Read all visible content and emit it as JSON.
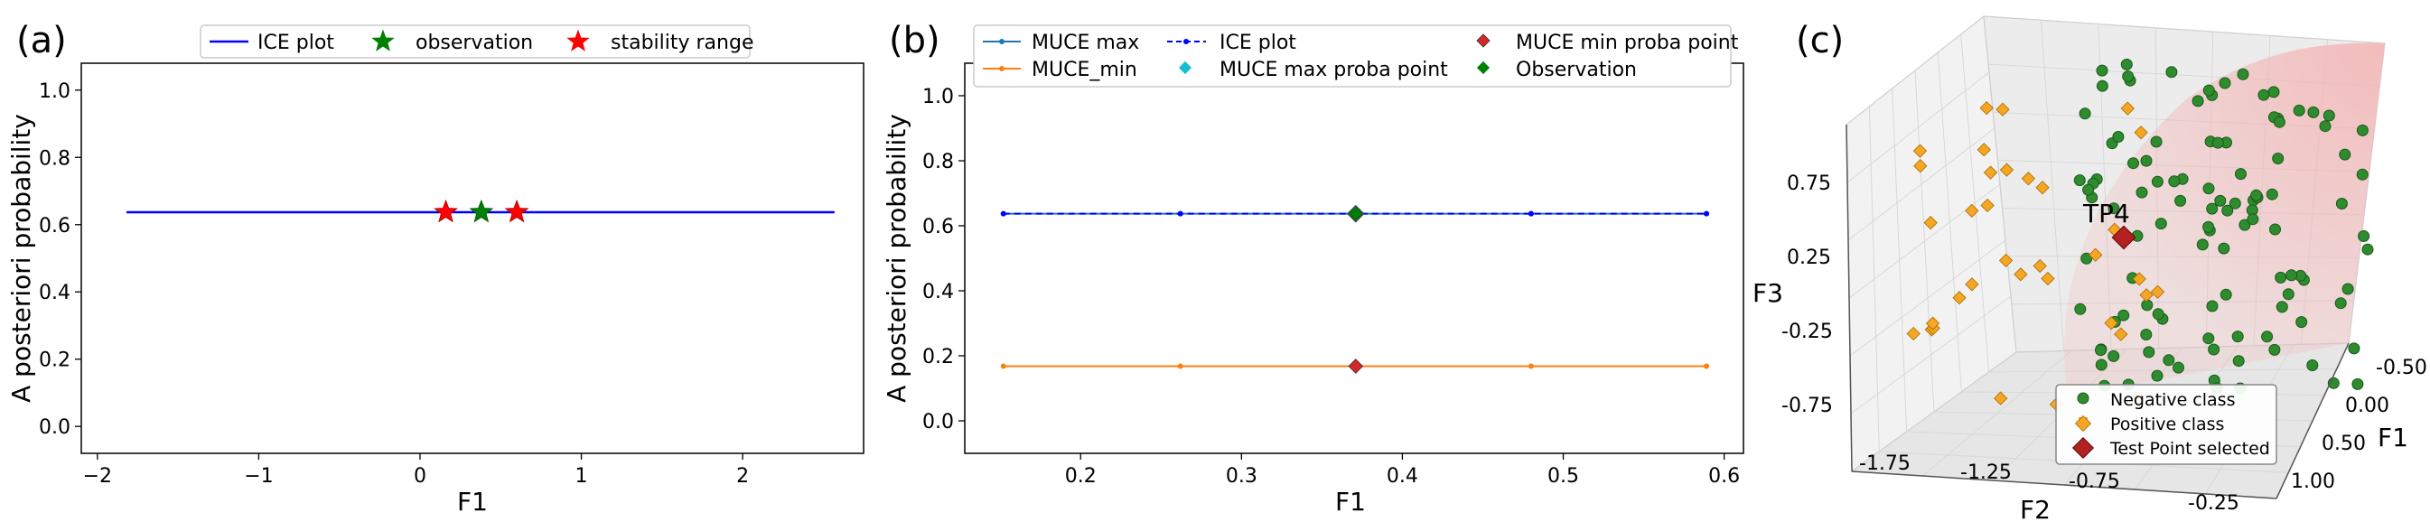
{
  "chart_data": [
    {
      "type": "line",
      "panel_label": "(a)",
      "xlabel": "F1",
      "ylabel": "A posteriori probability",
      "xlim": [
        -2.1,
        2.75
      ],
      "ylim": [
        -0.08,
        1.08
      ],
      "xticks": [
        -2,
        -1,
        0,
        1,
        2
      ],
      "xtick_labels": [
        "−2",
        "−1",
        "0",
        "1",
        "2"
      ],
      "yticks": [
        0.0,
        0.2,
        0.4,
        0.6,
        0.8,
        1.0
      ],
      "ytick_labels": [
        "0.0",
        "0.2",
        "0.4",
        "0.6",
        "0.8",
        "1.0"
      ],
      "legend_position": "top-center",
      "colors": {
        "ice": "#0000ff",
        "observation": "#008000",
        "stability": "#ff0000"
      },
      "series": [
        {
          "name": "ICE plot",
          "x": [
            -1.82,
            2.57
          ],
          "y": [
            0.637,
            0.637
          ]
        },
        {
          "name": "observation",
          "x": [
            0.38
          ],
          "y": [
            0.637
          ]
        },
        {
          "name": "stability range",
          "x": [
            0.16,
            0.6
          ],
          "y": [
            0.637,
            0.637
          ]
        }
      ]
    },
    {
      "type": "line",
      "panel_label": "(b)",
      "xlabel": "F1",
      "ylabel": "A posteriori probability",
      "xlim": [
        0.128,
        0.612
      ],
      "ylim": [
        -0.1,
        1.1
      ],
      "xticks": [
        0.2,
        0.3,
        0.4,
        0.5,
        0.6
      ],
      "xtick_labels": [
        "0.2",
        "0.3",
        "0.4",
        "0.5",
        "0.6"
      ],
      "yticks": [
        0.0,
        0.2,
        0.4,
        0.6,
        0.8,
        1.0
      ],
      "ytick_labels": [
        "0.0",
        "0.2",
        "0.4",
        "0.6",
        "0.8",
        "1.0"
      ],
      "legend_position": "top",
      "colors": {
        "muce_max": "#1f77b4",
        "muce_min": "#ff7f0e",
        "ice": "#0000ff",
        "max_point": "#17becf",
        "min_point": "#d62728",
        "observation": "#008000"
      },
      "series": [
        {
          "name": "MUCE max",
          "x": [
            0.152,
            0.262,
            0.371,
            0.48,
            0.589
          ],
          "y": [
            0.637,
            0.637,
            0.637,
            0.637,
            0.637
          ]
        },
        {
          "name": "MUCE_min",
          "x": [
            0.152,
            0.262,
            0.371,
            0.48,
            0.589
          ],
          "y": [
            0.168,
            0.168,
            0.168,
            0.168,
            0.168
          ]
        },
        {
          "name": "ICE plot",
          "x": [
            0.152,
            0.262,
            0.371,
            0.48,
            0.589
          ],
          "y": [
            0.637,
            0.637,
            0.637,
            0.637,
            0.637
          ]
        },
        {
          "name": "MUCE max proba point",
          "x": [
            0.371
          ],
          "y": [
            0.637
          ]
        },
        {
          "name": "MUCE min proba point",
          "x": [
            0.371
          ],
          "y": [
            0.168
          ]
        },
        {
          "name": "Observation",
          "x": [
            0.371
          ],
          "y": [
            0.637
          ]
        }
      ]
    },
    {
      "type": "scatter",
      "panel_label": "(c)",
      "xlabel": "F1",
      "ylabel": "F2",
      "zlabel": "F3",
      "annotation": "TP4",
      "f1_ticks": [
        "-0.50",
        "0.00",
        "0.50",
        "1.00"
      ],
      "f2_ticks": [
        "-1.75",
        "-1.25",
        "-0.75",
        "-0.25"
      ],
      "f3_ticks": [
        "0.75",
        "0.25",
        "-0.25",
        "-0.75"
      ],
      "legend_position": "lower-right",
      "colors": {
        "negative": "#2e8b2e",
        "positive": "#f5a623",
        "test_point": "#b22222",
        "region": "#f4b6b6"
      },
      "series": [
        {
          "name": "Negative class"
        },
        {
          "name": "Positive class"
        },
        {
          "name": "Test Point selected"
        }
      ]
    }
  ]
}
